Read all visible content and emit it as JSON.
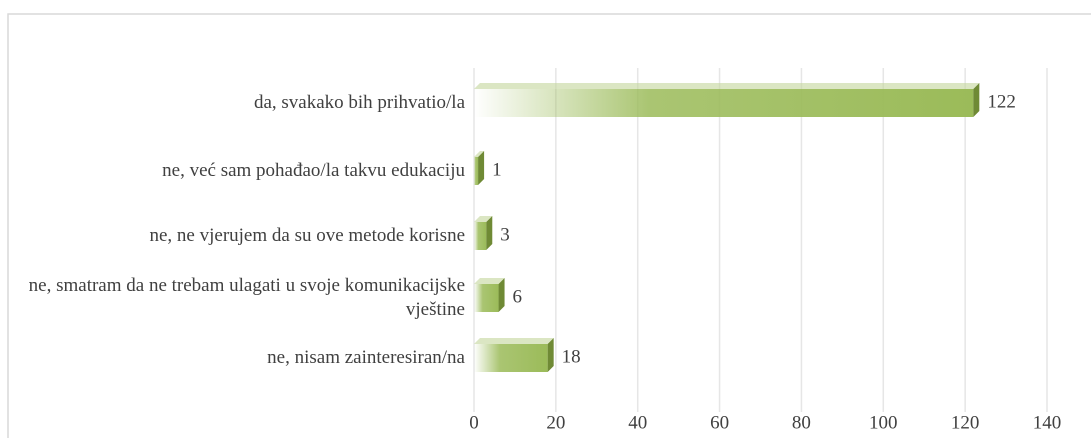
{
  "chart_data": {
    "type": "bar",
    "orientation": "horizontal",
    "categories": [
      "da, svakako bih prihvatio/la",
      "ne, već sam pohađao/la takvu edukaciju",
      "ne, ne vjerujem da su ove metode korisne",
      "ne, smatram da ne trebam ulagati u svoje komunikacijske vještine",
      "ne, nisam zainteresiran/na"
    ],
    "values": [
      122,
      1,
      3,
      6,
      18
    ],
    "color": "#9bbb59",
    "xlim": [
      0,
      140
    ],
    "xticks": [
      0,
      20,
      40,
      60,
      80,
      100,
      120,
      140
    ],
    "grid": true
  }
}
